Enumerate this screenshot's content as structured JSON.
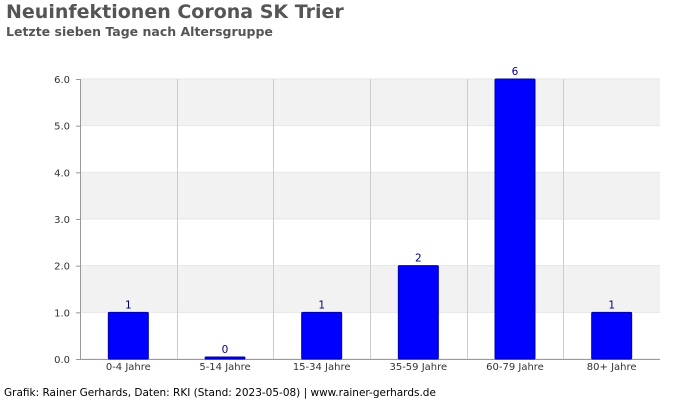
{
  "header": {
    "title": "Neuinfektionen Corona SK Trier",
    "subtitle": "Letzte sieben Tage nach Altersgruppe"
  },
  "footer": {
    "credit": "Grafik: Rainer Gerhards, Daten: RKI (Stand: 2023-05-08) | www.rainer-gerhards.de"
  },
  "chart_data": {
    "type": "bar",
    "title": "Neuinfektionen Corona SK Trier",
    "subtitle": "Letzte sieben Tage nach Altersgruppe",
    "xlabel": "",
    "ylabel": "",
    "categories": [
      "0-4 Jahre",
      "5-14 Jahre",
      "15-34 Jahre",
      "35-59 Jahre",
      "60-79 Jahre",
      "80+ Jahre"
    ],
    "values": [
      1,
      0,
      1,
      2,
      6,
      1
    ],
    "value_labels": [
      "1",
      "0",
      "1",
      "2",
      "6",
      "1"
    ],
    "ylim": [
      0,
      6
    ],
    "yticks": [
      0,
      1,
      2,
      3,
      4,
      5,
      6
    ],
    "ytick_labels": [
      "0.0",
      "1.0",
      "2.0",
      "3.0",
      "4.0",
      "5.0",
      "6.0"
    ],
    "grid": true,
    "legend": "none",
    "colors": {
      "bar": "#0000ff",
      "bar_border": "#0000aa",
      "value_label": "#000080",
      "band": "#f2f2f2",
      "gridline": "#cccccc",
      "axis": "#999999"
    }
  }
}
